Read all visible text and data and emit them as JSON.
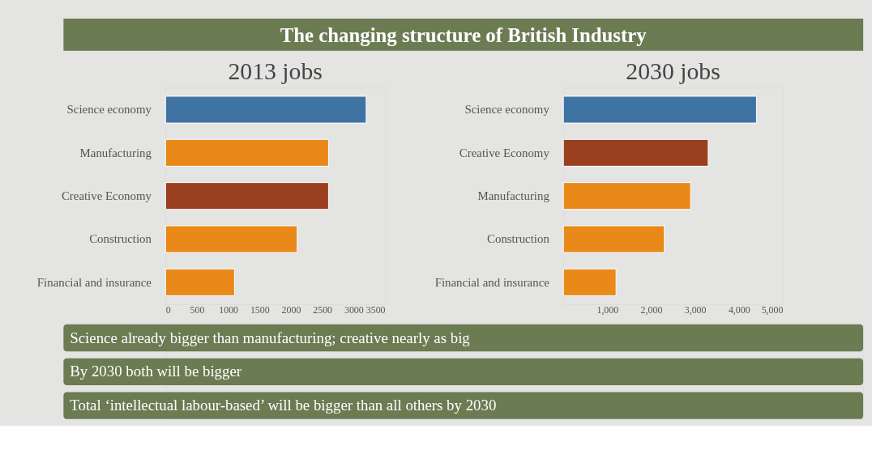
{
  "chart_data": [
    {
      "type": "other",
      "title": "The changing structure of British Industry"
    },
    {
      "type": "bar",
      "orientation": "horizontal",
      "title": "2013 jobs",
      "categories": [
        "Science economy",
        "Manufacturing",
        "Creative Economy",
        "Construction",
        "Financial and insurance"
      ],
      "values": [
        3200,
        2600,
        2600,
        2100,
        1100
      ],
      "colors": [
        "#3f73a3",
        "#e8891a",
        "#9a3f1f",
        "#e8891a",
        "#e8891a"
      ],
      "xlim": [
        0,
        3500
      ],
      "xticks": [
        0,
        500,
        1000,
        1500,
        2000,
        2500,
        3000,
        3500
      ],
      "grid": false,
      "legend": false
    },
    {
      "type": "bar",
      "orientation": "horizontal",
      "title": "2030 jobs",
      "categories": [
        "Science economy",
        "Creative Economy",
        "Manufacturing",
        "Construction",
        "Financial and insurance"
      ],
      "values": [
        4400,
        3300,
        2900,
        2300,
        1200
      ],
      "colors": [
        "#3f73a3",
        "#9a3f1f",
        "#e8891a",
        "#e8891a",
        "#e8891a"
      ],
      "xlim": [
        0,
        5000
      ],
      "xticks": [
        {
          "value": 1000,
          "label": "1,000"
        },
        {
          "value": 2000,
          "label": "2,000"
        },
        {
          "value": 3000,
          "label": "3,000"
        },
        {
          "value": 4000,
          "label": "4,000"
        },
        {
          "value": 5000,
          "label": "5,000"
        }
      ],
      "grid": false,
      "legend": false
    },
    {
      "type": "other",
      "annotations": [
        "Science already bigger than manufacturing; creative nearly as big",
        "By 2030 both will be bigger",
        "Total ‘intellectual labour-based’ will be bigger than all others by 2030"
      ]
    }
  ]
}
